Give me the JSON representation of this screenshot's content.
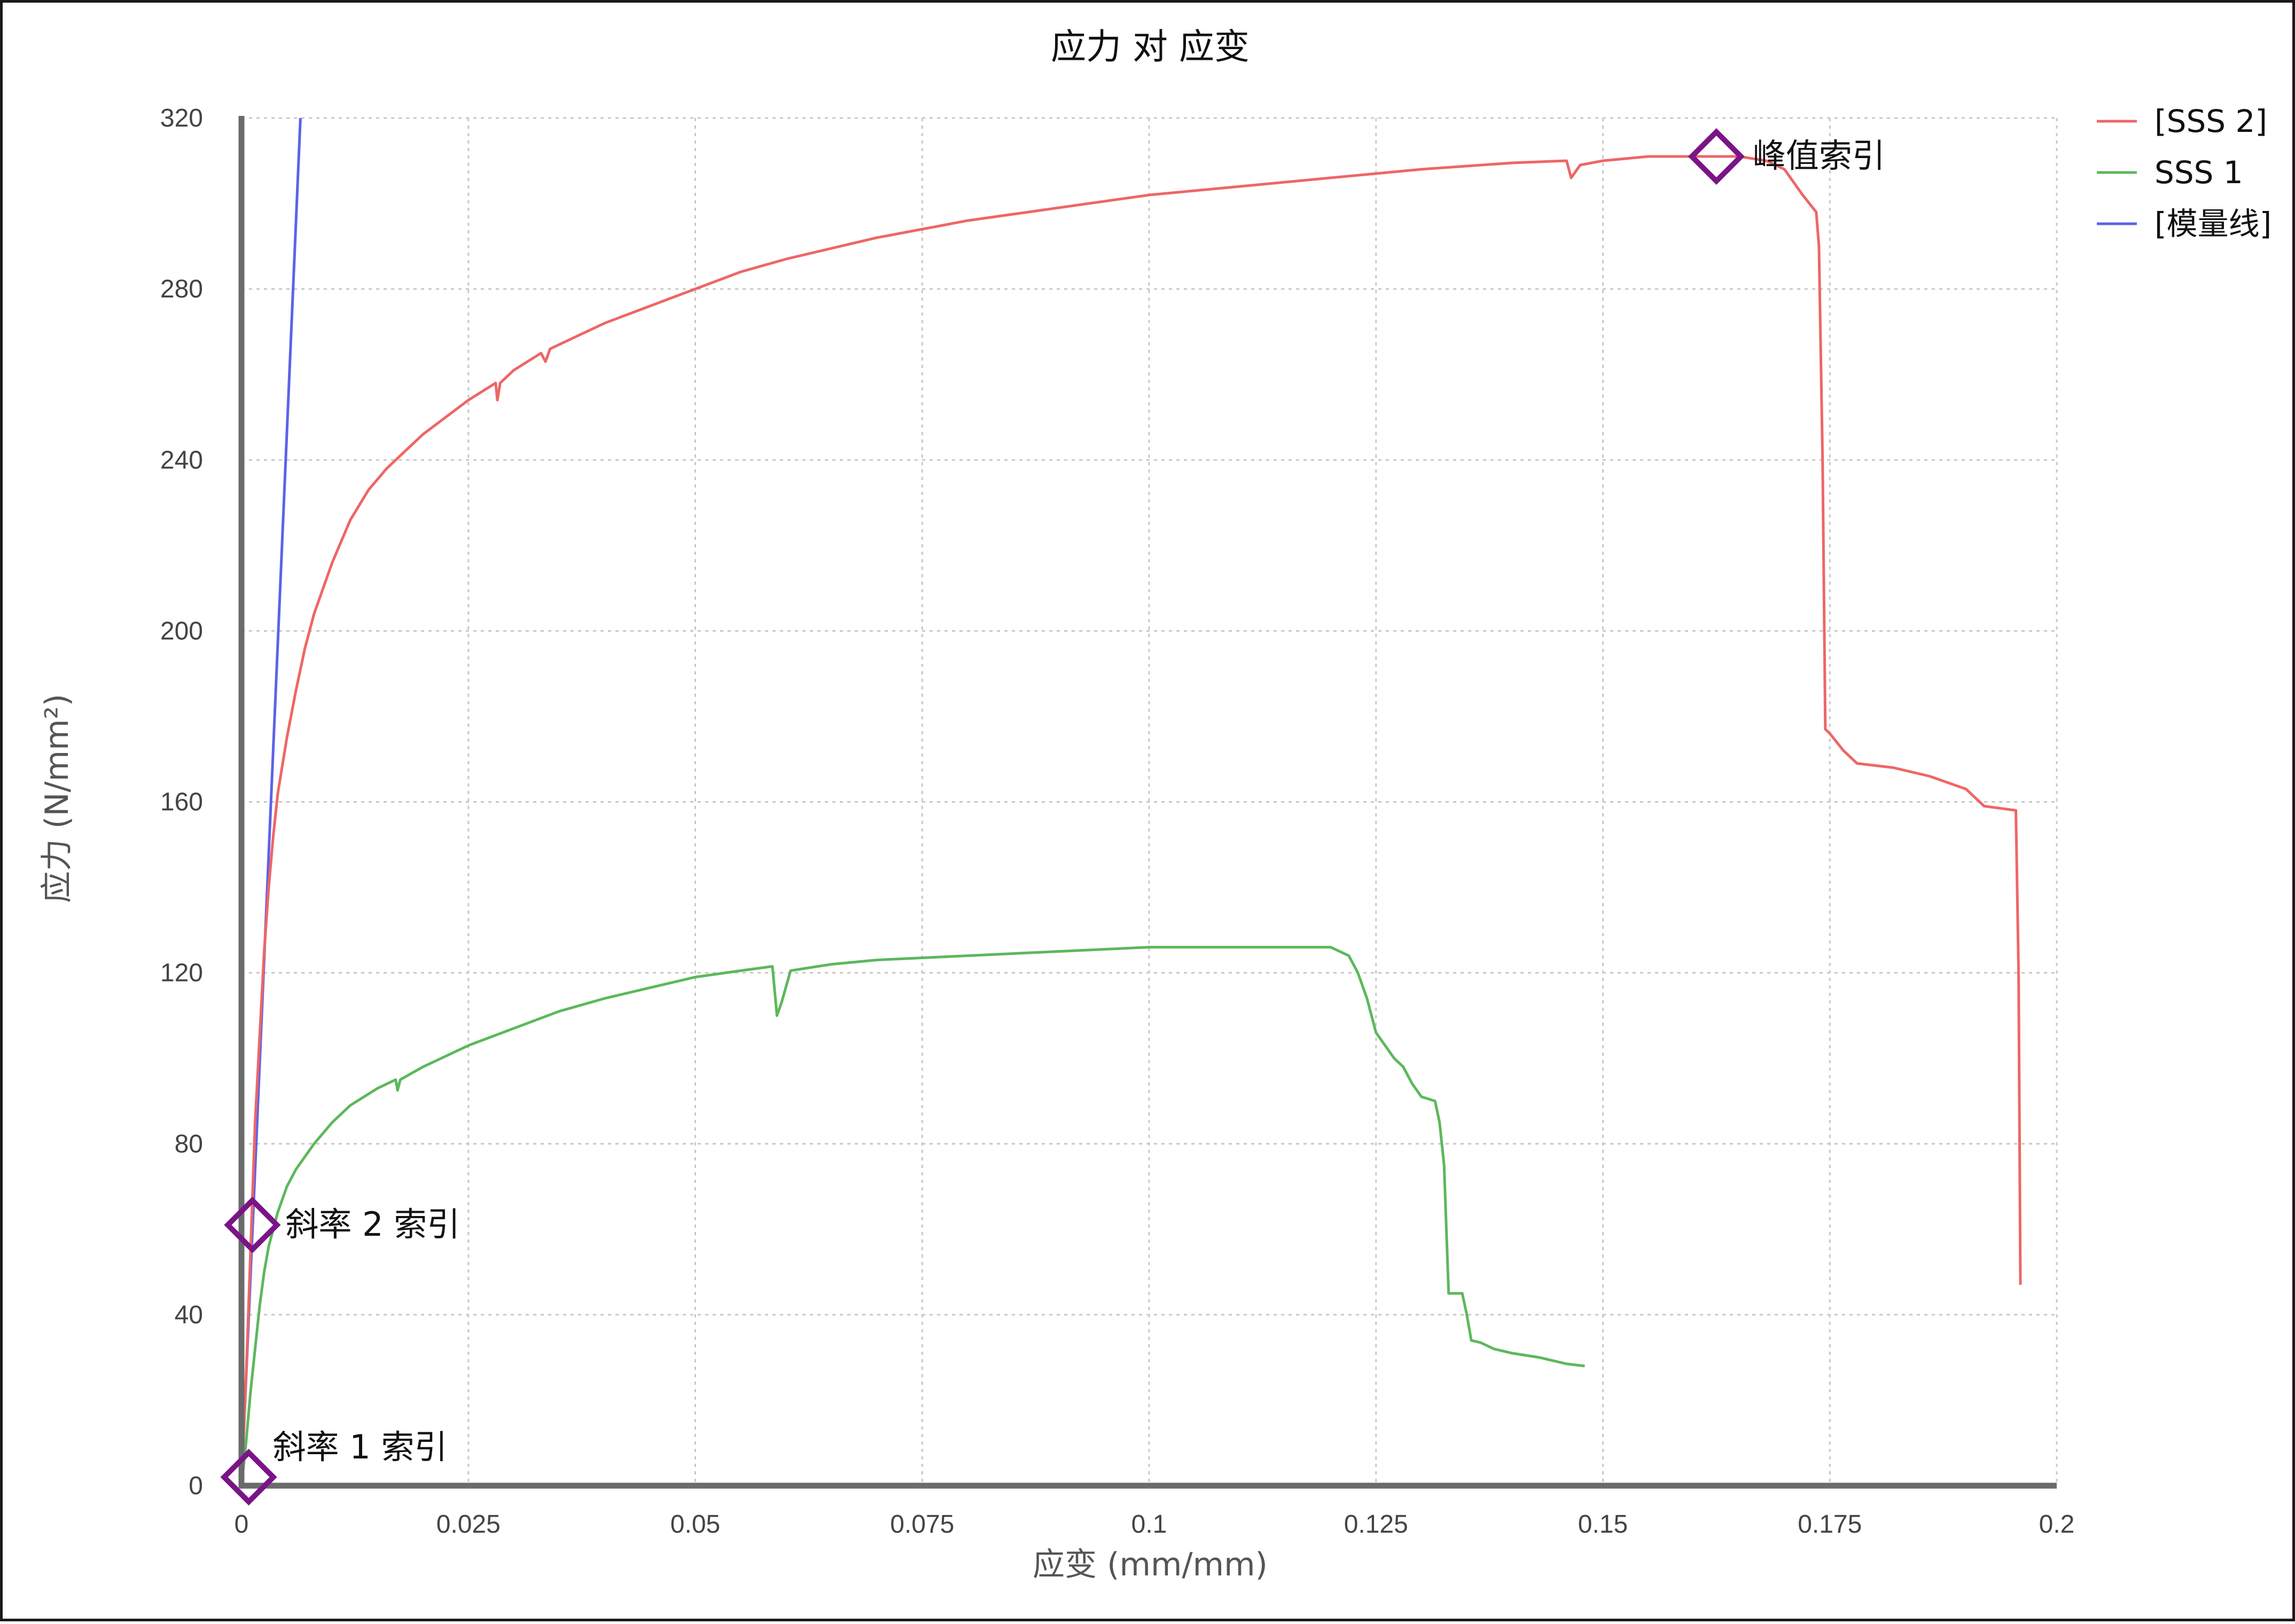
{
  "chart_data": {
    "type": "line",
    "title": "应力 对 应变",
    "xlabel": "应变 (mm/mm)",
    "ylabel": "应力 (N/mm²)",
    "xlim": [
      0,
      0.2
    ],
    "ylim": [
      0,
      320
    ],
    "xticks": [
      {
        "value": 0,
        "label": "0"
      },
      {
        "value": 0.025,
        "label": "0.025"
      },
      {
        "value": 0.05,
        "label": "0.05"
      },
      {
        "value": 0.075,
        "label": "0.075"
      },
      {
        "value": 0.1,
        "label": "0.1"
      },
      {
        "value": 0.125,
        "label": "0.125"
      },
      {
        "value": 0.15,
        "label": "0.15"
      },
      {
        "value": 0.175,
        "label": "0.175"
      },
      {
        "value": 0.2,
        "label": "0.2"
      }
    ],
    "yticks": [
      {
        "value": 0,
        "label": "0"
      },
      {
        "value": 40,
        "label": "40"
      },
      {
        "value": 80,
        "label": "80"
      },
      {
        "value": 120,
        "label": "120"
      },
      {
        "value": 160,
        "label": "160"
      },
      {
        "value": 200,
        "label": "200"
      },
      {
        "value": 240,
        "label": "240"
      },
      {
        "value": 280,
        "label": "280"
      },
      {
        "value": 320,
        "label": "320"
      }
    ],
    "grid": true,
    "legend_position": "top-right",
    "series": [
      {
        "name": "[SSS 2]",
        "color": "#ee6666",
        "points": [
          [
            0,
            0
          ],
          [
            0.0005,
            25
          ],
          [
            0.001,
            55
          ],
          [
            0.0015,
            85
          ],
          [
            0.002,
            105
          ],
          [
            0.0025,
            125
          ],
          [
            0.003,
            140
          ],
          [
            0.0035,
            152
          ],
          [
            0.004,
            162
          ],
          [
            0.005,
            175
          ],
          [
            0.006,
            186
          ],
          [
            0.007,
            196
          ],
          [
            0.008,
            204
          ],
          [
            0.01,
            216
          ],
          [
            0.012,
            226
          ],
          [
            0.014,
            233
          ],
          [
            0.016,
            238
          ],
          [
            0.02,
            246
          ],
          [
            0.025,
            254
          ],
          [
            0.028,
            258
          ],
          [
            0.0282,
            254
          ],
          [
            0.0285,
            258
          ],
          [
            0.03,
            261
          ],
          [
            0.033,
            265
          ],
          [
            0.0335,
            263
          ],
          [
            0.034,
            266
          ],
          [
            0.04,
            272
          ],
          [
            0.045,
            276
          ],
          [
            0.05,
            280
          ],
          [
            0.055,
            284
          ],
          [
            0.06,
            287
          ],
          [
            0.07,
            292
          ],
          [
            0.08,
            296
          ],
          [
            0.09,
            299
          ],
          [
            0.1,
            302
          ],
          [
            0.11,
            304
          ],
          [
            0.12,
            306
          ],
          [
            0.13,
            308
          ],
          [
            0.14,
            309.5
          ],
          [
            0.146,
            310
          ],
          [
            0.1465,
            306
          ],
          [
            0.1475,
            309
          ],
          [
            0.15,
            310
          ],
          [
            0.155,
            311
          ],
          [
            0.162,
            311
          ],
          [
            0.165,
            311
          ],
          [
            0.168,
            310
          ],
          [
            0.17,
            308
          ],
          [
            0.172,
            302
          ],
          [
            0.1735,
            298
          ],
          [
            0.1738,
            290
          ],
          [
            0.1742,
            240
          ],
          [
            0.1745,
            177
          ],
          [
            0.175,
            176
          ],
          [
            0.1765,
            172
          ],
          [
            0.178,
            169
          ],
          [
            0.182,
            168
          ],
          [
            0.186,
            166
          ],
          [
            0.19,
            163
          ],
          [
            0.192,
            159
          ],
          [
            0.1955,
            158
          ],
          [
            0.1958,
            120
          ],
          [
            0.196,
            47
          ]
        ]
      },
      {
        "name": "SSS 1",
        "color": "#5cb85c",
        "points": [
          [
            0,
            0
          ],
          [
            0.0005,
            10
          ],
          [
            0.001,
            22
          ],
          [
            0.0015,
            32
          ],
          [
            0.002,
            42
          ],
          [
            0.0025,
            50
          ],
          [
            0.003,
            56
          ],
          [
            0.004,
            64
          ],
          [
            0.005,
            70
          ],
          [
            0.006,
            74
          ],
          [
            0.008,
            80
          ],
          [
            0.01,
            85
          ],
          [
            0.012,
            89
          ],
          [
            0.015,
            93
          ],
          [
            0.017,
            95
          ],
          [
            0.0172,
            92.5
          ],
          [
            0.0175,
            95
          ],
          [
            0.02,
            98
          ],
          [
            0.025,
            103
          ],
          [
            0.03,
            107
          ],
          [
            0.035,
            111
          ],
          [
            0.04,
            114
          ],
          [
            0.045,
            116.5
          ],
          [
            0.05,
            119
          ],
          [
            0.055,
            120.5
          ],
          [
            0.0585,
            121.5
          ],
          [
            0.059,
            110
          ],
          [
            0.0595,
            113
          ],
          [
            0.0605,
            120.5
          ],
          [
            0.065,
            122
          ],
          [
            0.07,
            123
          ],
          [
            0.08,
            124
          ],
          [
            0.09,
            125
          ],
          [
            0.1,
            126
          ],
          [
            0.11,
            126
          ],
          [
            0.12,
            126
          ],
          [
            0.121,
            125
          ],
          [
            0.122,
            124
          ],
          [
            0.123,
            120
          ],
          [
            0.124,
            114
          ],
          [
            0.125,
            106
          ],
          [
            0.127,
            100
          ],
          [
            0.128,
            98
          ],
          [
            0.129,
            94
          ],
          [
            0.13,
            91
          ],
          [
            0.1315,
            90
          ],
          [
            0.132,
            85
          ],
          [
            0.1325,
            75
          ],
          [
            0.133,
            45
          ],
          [
            0.1345,
            45
          ],
          [
            0.135,
            40
          ],
          [
            0.1355,
            34
          ],
          [
            0.1365,
            33.5
          ],
          [
            0.138,
            32
          ],
          [
            0.14,
            31
          ],
          [
            0.143,
            30
          ],
          [
            0.146,
            28.5
          ],
          [
            0.148,
            28
          ]
        ]
      },
      {
        "name": "[模量线]",
        "color": "#5b63e8",
        "points": [
          [
            0,
            0
          ],
          [
            0.0065,
            320
          ]
        ]
      }
    ],
    "annotations": [
      {
        "label": "峰值索引",
        "x": 0.1625,
        "y": 311,
        "marker": "diamond",
        "color": "#7a1487"
      },
      {
        "label": "斜率 2 索引",
        "x": 0.0012,
        "y": 61,
        "marker": "diamond",
        "color": "#7a1487"
      },
      {
        "label": "斜率 1 索引",
        "x": 0.0008,
        "y": 2,
        "marker": "diamond",
        "color": "#7a1487"
      }
    ]
  }
}
